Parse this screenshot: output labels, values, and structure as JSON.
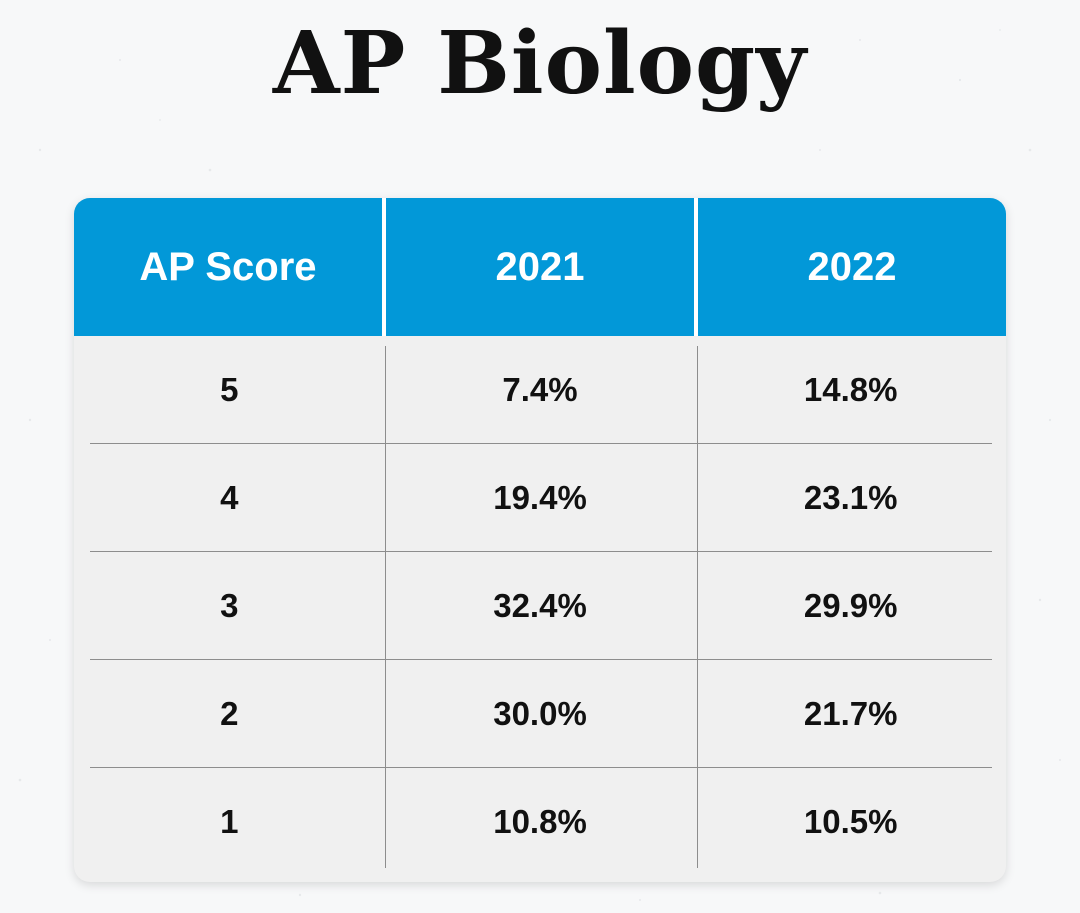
{
  "chart_data": {
    "type": "table",
    "title": "AP Biology",
    "columns": [
      "AP Score",
      "2021",
      "2022"
    ],
    "rows": [
      [
        "5",
        "7.4%",
        "14.8%"
      ],
      [
        "4",
        "19.4%",
        "23.1%"
      ],
      [
        "3",
        "32.4%",
        "29.9%"
      ],
      [
        "2",
        "30.0%",
        "21.7%"
      ],
      [
        "1",
        "10.8%",
        "10.5%"
      ]
    ]
  },
  "colors": {
    "header_bg": "#0298d8",
    "header_text": "#ffffff",
    "body_bg": "#f0f0f0",
    "text": "#111111"
  }
}
